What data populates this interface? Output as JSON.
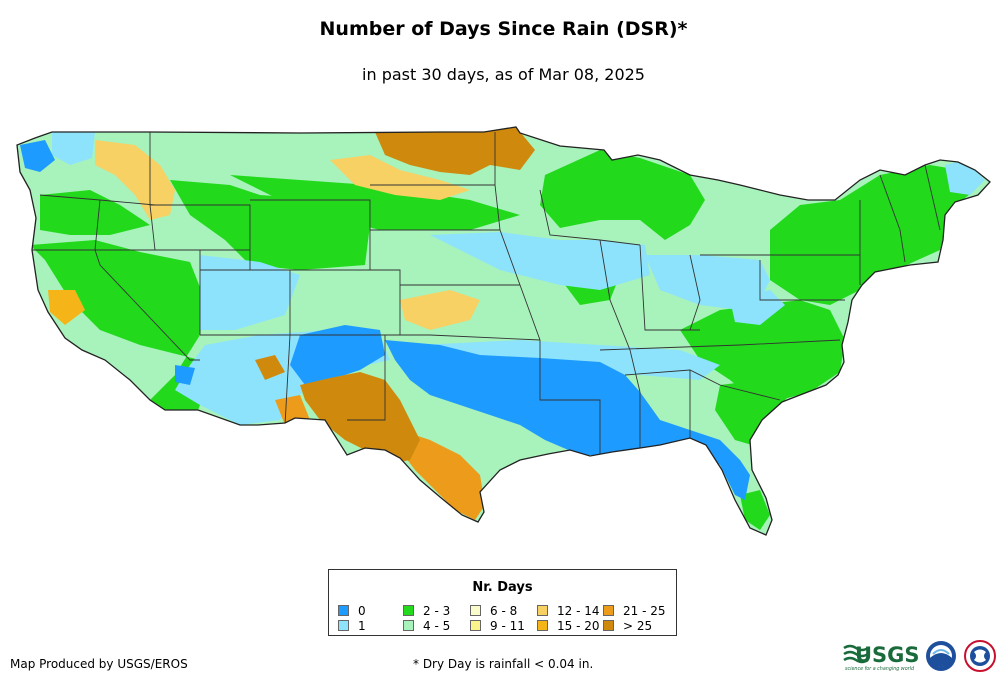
{
  "header": {
    "title": "Number of Days Since Rain (DSR)*",
    "subtitle": "in past 30 days, as of Mar 08, 2025"
  },
  "legend": {
    "title": "Nr. Days",
    "items": [
      {
        "label": "0",
        "color": "#1e9bff"
      },
      {
        "label": "1",
        "color": "#8de3fc"
      },
      {
        "label": "2 - 3",
        "color": "#22d91c"
      },
      {
        "label": "4 - 5",
        "color": "#a8f2bc"
      },
      {
        "label": "6 - 8",
        "color": "#fbfccb"
      },
      {
        "label": "9 - 11",
        "color": "#faf28a"
      },
      {
        "label": "12 - 14",
        "color": "#f7d164"
      },
      {
        "label": "15 - 20",
        "color": "#f5b518"
      },
      {
        "label": "21 - 25",
        "color": "#ec9c1a"
      },
      {
        "label": "> 25",
        "color": "#cf8a0e"
      }
    ]
  },
  "footer": {
    "credit": "Map Produced by USGS/EROS",
    "footnote": "* Dry Day is rainfall < 0.04 in.",
    "usgs_logo_text": "USGS",
    "usgs_tagline": "science for a changing world"
  }
}
